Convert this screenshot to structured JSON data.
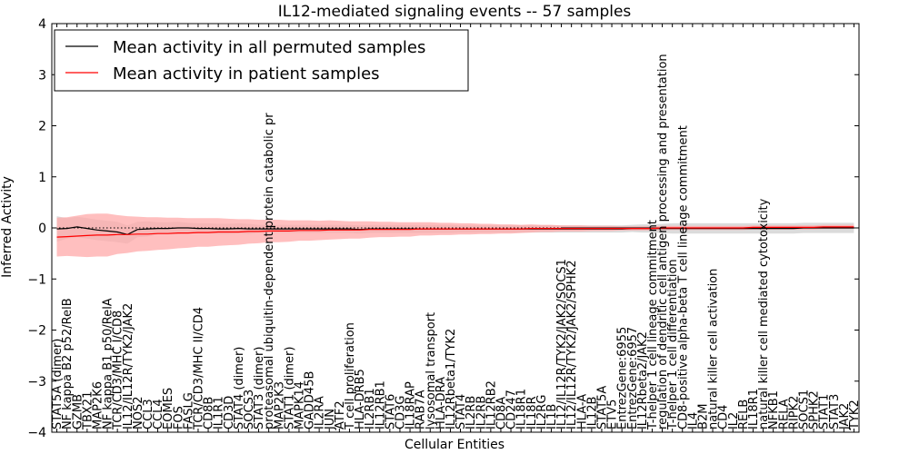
{
  "chart_data": {
    "type": "line",
    "title": "IL12-mediated signaling events -- 57 samples",
    "xlabel": "Cellular Entities",
    "ylabel": "Inferred Activity",
    "ylim": [
      -4,
      4
    ],
    "yticks": [
      4,
      3,
      2,
      1,
      0,
      -1,
      -2,
      -3,
      -4
    ],
    "ytick_labels": [
      "4",
      "3",
      "2",
      "1",
      "0",
      "−1",
      "−2",
      "−3",
      "−4"
    ],
    "legend_position": "top-left",
    "categories": [
      "STAT5A (dimer)",
      "NF kappa B2 p52/RelB",
      "GZMB",
      "TBX21",
      "MAP2K6",
      "NF kappa B1 p50/RelA",
      "TCR/CD3/MHC I/CD8",
      "IL12/IL12R/TYK2/JAK2",
      "NOS2",
      "CCL3",
      "CCL4",
      "EOMES",
      "FOS",
      "FASLG",
      "TCR/CD3/MHC II/CD4",
      "CD8B",
      "IL1R1",
      "CD3D",
      "STAT4 (dimer)",
      "SOCS3",
      "STAT3 (dimer)",
      "proteasomal ubiquitin-dependent protein catabolic pr",
      "MAP2K3",
      "STAT1 (dimer)",
      "MAPK14",
      "GADD45B",
      "IL2RA",
      "JUN",
      "ATF2",
      "T cell proliferation",
      "HLA-DRB5",
      "IL2RB1",
      "IL12RB1",
      "STAT6",
      "CD3G",
      "IL18RAP",
      "RAB7A",
      "lysosomal transport",
      "HLA-DRA",
      "IL12Rbeta1/TYK2",
      "STAT4",
      "IL2RB",
      "IL2RB",
      "IL12RB2",
      "CD8A",
      "CD247",
      "IL18R1",
      "IL18R",
      "IL2RG",
      "IL1B",
      "IL12/IL12R/TYK2/JAK2/SOCS1",
      "IL12/IL12R/TYK2/JAK2/SPHK2",
      "HLA-A",
      "IL12B",
      "STAT5A",
      "ETV5",
      "EntrezGene:6955",
      "EntrezGene:6957",
      "IL12Rbeta2/JAK2",
      "T-helper 1 cell lineage commitment",
      "regulation of dendritic cell antigen processing and presentation",
      "T-helper 1 cell differentiation",
      "CD8-positive alpha-beta T cell lineage commitment",
      "IL4",
      "B2M",
      "natural killer cell activation",
      "CD4",
      "IL2",
      "RELB",
      "IL18R1",
      "natural killer cell mediated cytotoxicity",
      "NFKB1",
      "RELA",
      "RIPK2",
      "SOCS1",
      "SPHK2",
      "STAT1",
      "STAT3",
      "JAK2",
      "TYK2"
    ],
    "series": [
      {
        "name": "Mean activity in all permuted samples",
        "color": "#000000",
        "band_color": "#cccccc",
        "values": [
          -0.02,
          -0.01,
          0.02,
          -0.01,
          -0.04,
          -0.06,
          -0.08,
          -0.13,
          -0.03,
          -0.02,
          -0.01,
          -0.01,
          0.0,
          0.0,
          -0.01,
          -0.01,
          -0.02,
          -0.02,
          -0.01,
          -0.02,
          -0.02,
          -0.02,
          -0.02,
          -0.02,
          -0.02,
          -0.02,
          -0.02,
          -0.02,
          -0.02,
          -0.02,
          -0.03,
          -0.02,
          -0.02,
          -0.02,
          -0.02,
          -0.02,
          -0.02,
          -0.02,
          -0.02,
          -0.02,
          -0.02,
          -0.02,
          -0.02,
          -0.02,
          -0.02,
          -0.02,
          -0.02,
          -0.02,
          -0.02,
          -0.02,
          -0.02,
          -0.02,
          -0.02,
          -0.02,
          -0.02,
          -0.02,
          -0.02,
          -0.01,
          -0.01,
          -0.01,
          -0.01,
          -0.01,
          -0.01,
          -0.01,
          -0.01,
          -0.01,
          -0.01,
          -0.01,
          -0.01,
          -0.01,
          -0.01,
          -0.01,
          -0.01,
          -0.01,
          0.0,
          0.0,
          0.0,
          0.0,
          0.0,
          0.0
        ],
        "spread": [
          0.25,
          0.2,
          0.2,
          0.2,
          0.2,
          0.2,
          0.2,
          0.18,
          0.15,
          0.15,
          0.12,
          0.12,
          0.12,
          0.1,
          0.1,
          0.1,
          0.1,
          0.1,
          0.1,
          0.1,
          0.08,
          0.08,
          0.08,
          0.08,
          0.08,
          0.08,
          0.08,
          0.08,
          0.08,
          0.08,
          0.08,
          0.08,
          0.08,
          0.08,
          0.08,
          0.08,
          0.08,
          0.08,
          0.08,
          0.08,
          0.07,
          0.07,
          0.07,
          0.07,
          0.07,
          0.07,
          0.07,
          0.07,
          0.07,
          0.07,
          0.07,
          0.07,
          0.07,
          0.07,
          0.07,
          0.07,
          0.07,
          0.07,
          0.08,
          0.08,
          0.09,
          0.1,
          0.1,
          0.1,
          0.1,
          0.1,
          0.1,
          0.1,
          0.1,
          0.1,
          0.1,
          0.1,
          0.1,
          0.1,
          0.1,
          0.1,
          0.1,
          0.1,
          0.1,
          0.1
        ]
      },
      {
        "name": "Mean activity in patient samples",
        "color": "#ff0000",
        "band_color": "#ffaaaa",
        "values": [
          -0.18,
          -0.17,
          -0.16,
          -0.15,
          -0.14,
          -0.14,
          -0.13,
          -0.13,
          -0.12,
          -0.12,
          -0.11,
          -0.11,
          -0.1,
          -0.1,
          -0.09,
          -0.09,
          -0.08,
          -0.08,
          -0.08,
          -0.07,
          -0.07,
          -0.06,
          -0.06,
          -0.06,
          -0.05,
          -0.05,
          -0.05,
          -0.04,
          -0.04,
          -0.04,
          -0.04,
          -0.03,
          -0.03,
          -0.03,
          -0.03,
          -0.03,
          -0.02,
          -0.02,
          -0.02,
          -0.02,
          -0.02,
          -0.02,
          -0.02,
          -0.02,
          -0.02,
          -0.02,
          -0.02,
          -0.01,
          -0.01,
          -0.01,
          -0.01,
          -0.01,
          -0.01,
          -0.01,
          -0.01,
          -0.01,
          -0.01,
          -0.01,
          -0.01,
          -0.01,
          0.0,
          0.0,
          0.0,
          0.0,
          0.0,
          0.0,
          0.0,
          0.0,
          0.0,
          0.01,
          0.01,
          0.01,
          0.01,
          0.01,
          0.01,
          0.01,
          0.02,
          0.02,
          0.02,
          0.02
        ],
        "spread": [
          0.38,
          0.38,
          0.4,
          0.42,
          0.42,
          0.42,
          0.38,
          0.36,
          0.34,
          0.33,
          0.32,
          0.31,
          0.3,
          0.29,
          0.28,
          0.28,
          0.27,
          0.26,
          0.25,
          0.24,
          0.23,
          0.22,
          0.22,
          0.21,
          0.2,
          0.2,
          0.19,
          0.19,
          0.18,
          0.17,
          0.17,
          0.16,
          0.15,
          0.15,
          0.14,
          0.14,
          0.13,
          0.13,
          0.12,
          0.12,
          0.11,
          0.11,
          0.1,
          0.1,
          0.09,
          0.09,
          0.08,
          0.08,
          0.07,
          0.07,
          0.06,
          0.06,
          0.06,
          0.05,
          0.05,
          0.05,
          0.04,
          0.04,
          0.04,
          0.04,
          0.04,
          0.04,
          0.04,
          0.04,
          0.04,
          0.04,
          0.04,
          0.04,
          0.04,
          0.04,
          0.04,
          0.04,
          0.04,
          0.04,
          0.04,
          0.04,
          0.04,
          0.04,
          0.04,
          0.04
        ]
      }
    ]
  }
}
